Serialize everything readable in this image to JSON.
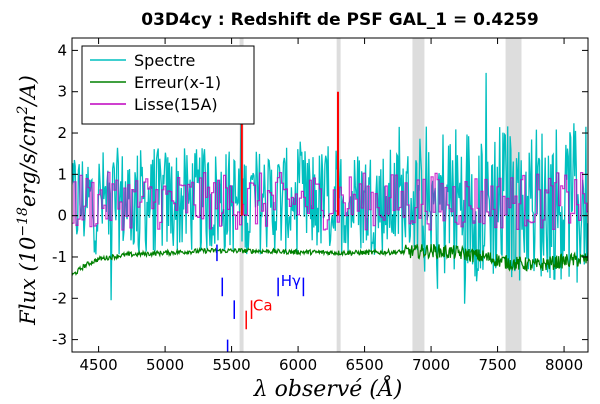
{
  "chart_data": {
    "type": "line",
    "title": "03D4cy : Redshift de PSF GAL_1 = 0.4259",
    "xlabel": "λ observé (Å)",
    "ylabel": "Flux (10^-18 erg/s/cm²/A)",
    "ylabel_main": "Flux (10",
    "ylabel_exp": "−18",
    "ylabel_rest": "erg/s/cm",
    "ylabel_exp2": "2",
    "ylabel_tail": "/A)",
    "xlim": [
      4300,
      8180
    ],
    "ylim": [
      -3.3,
      4.3
    ],
    "xticks": [
      4500,
      5000,
      5500,
      6000,
      6500,
      7000,
      7500,
      8000
    ],
    "xtick_labels": [
      "4500",
      "5000",
      "5500",
      "6000",
      "6500",
      "7000",
      "7500",
      "8000"
    ],
    "yticks": [
      -3,
      -2,
      -1,
      0,
      1,
      2,
      3,
      4
    ],
    "ytick_labels": [
      "-3",
      "-2",
      "-1",
      "0",
      "1",
      "2",
      "3",
      "4"
    ],
    "grid": false,
    "legend_placement": "top-left",
    "zero_line": true,
    "series": [
      {
        "name": "Spectre",
        "color": "#00bfbf",
        "style": "noisy-spectrum",
        "base": 0.35,
        "amplitude": 1.3
      },
      {
        "name": "Erreur(x-1)",
        "color": "#008000",
        "style": "error-curve"
      },
      {
        "name": "Lisse(15A)",
        "color": "#bf00bf",
        "style": "smoothed"
      }
    ],
    "error_curve_points": [
      [
        4300,
        -1.45
      ],
      [
        4400,
        -1.2
      ],
      [
        4500,
        -1.05
      ],
      [
        4700,
        -0.95
      ],
      [
        5000,
        -0.9
      ],
      [
        5300,
        -0.85
      ],
      [
        5600,
        -0.85
      ],
      [
        6000,
        -0.88
      ],
      [
        6400,
        -0.9
      ],
      [
        6800,
        -0.88
      ],
      [
        7000,
        -0.85
      ],
      [
        7200,
        -0.9
      ],
      [
        7400,
        -1.0
      ],
      [
        7600,
        -1.15
      ],
      [
        7800,
        -1.2
      ],
      [
        8000,
        -1.1
      ],
      [
        8180,
        -1.05
      ]
    ],
    "shaded_bands": [
      [
        5560,
        5590
      ],
      [
        6290,
        6320
      ],
      [
        6860,
        6950
      ],
      [
        7560,
        7680
      ]
    ],
    "emission_spikes": [
      {
        "x": 5577,
        "y": 2.7,
        "color": "#ff0000"
      },
      {
        "x": 6300,
        "y": 3.0,
        "color": "#ff0000"
      }
    ],
    "line_markers": [
      {
        "x": 5390,
        "y1": -0.7,
        "y2": -1.1,
        "color": "#0000ff"
      },
      {
        "x": 5430,
        "y1": -1.5,
        "y2": -1.95,
        "color": "#0000ff"
      },
      {
        "x": 5470,
        "y1": -3.0,
        "y2": -3.5,
        "color": "#0000ff"
      },
      {
        "x": 5520,
        "y1": -2.05,
        "y2": -2.5,
        "color": "#0000ff"
      },
      {
        "x": 5610,
        "y1": -2.3,
        "y2": -2.75,
        "color": "#ff0000"
      },
      {
        "x": 5650,
        "y1": -2.05,
        "y2": -2.5,
        "color": "#ff0000"
      },
      {
        "x": 5850,
        "y1": -1.5,
        "y2": -1.95,
        "color": "#0000ff"
      },
      {
        "x": 6040,
        "y1": -1.5,
        "y2": -1.95,
        "color": "#0000ff"
      }
    ],
    "line_labels": [
      {
        "text": "Ca",
        "x": 5660,
        "y": -2.3,
        "color": "#ff0000"
      },
      {
        "text": "Hγ",
        "x": 5870,
        "y": -1.7,
        "color": "#0000ff"
      }
    ]
  }
}
